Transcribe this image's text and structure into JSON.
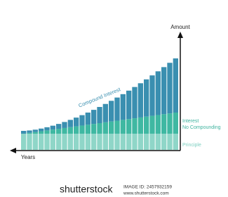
{
  "axes": {
    "y_label": "Amount",
    "x_label": "Years"
  },
  "labels": {
    "compound": "Compound Interest",
    "simple_line1": "Interest",
    "simple_line2": "No Compounding",
    "principle": "Principle"
  },
  "watermark": {
    "brand": "shutterstock",
    "image_id": "IMAGE ID: 2457932159",
    "url": "www.shutterstock.com"
  }
}
